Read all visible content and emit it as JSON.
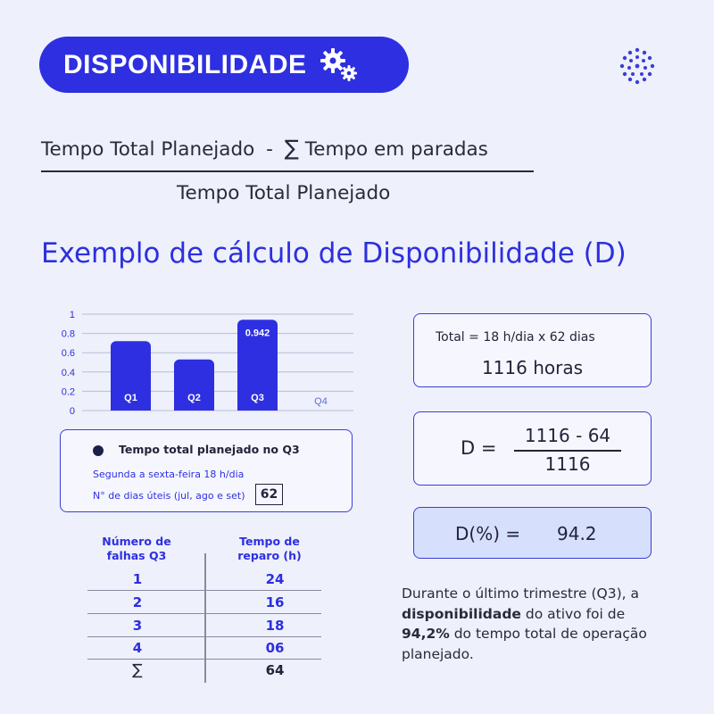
{
  "header": {
    "title": "DISPONIBILIDADE",
    "icon": "gears-icon"
  },
  "brand": {
    "accent": "#2d2fe0",
    "logo_icon": "dot-circle-logo"
  },
  "formula": {
    "numerator_left": "Tempo Total Planejado",
    "minus": "-",
    "sum_symbol": "∑",
    "numerator_right": "Tempo em paradas",
    "denominator": "Tempo Total Planejado"
  },
  "section_title": "Exemplo de cálculo de Disponibilidade (D)",
  "chart_data": {
    "type": "bar",
    "categories": [
      "Q1",
      "Q2",
      "Q3",
      "Q4"
    ],
    "values": [
      0.72,
      0.53,
      0.942,
      null
    ],
    "data_labels": [
      "",
      "",
      "0.942",
      ""
    ],
    "ylim": [
      0,
      1
    ],
    "yticks": [
      "0",
      "0.2",
      "0.4",
      "0.6",
      "0.8",
      "1"
    ],
    "grid": true,
    "bar_color": "#2d2fe0"
  },
  "info_box": {
    "heading": "Tempo total planejado no Q3",
    "line1": "Segunda a sexta-feira  18 h/dia",
    "line2": "N° de dias úteis (jul, ago e set)",
    "days": "62"
  },
  "table": {
    "col1_header_l1": "Número de",
    "col1_header_l2": "falhas Q3",
    "col2_header_l1": "Tempo de",
    "col2_header_l2": "reparo (h)",
    "rows": [
      {
        "n": "1",
        "t": "24"
      },
      {
        "n": "2",
        "t": "16"
      },
      {
        "n": "3",
        "t": "18"
      },
      {
        "n": "4",
        "t": "06"
      }
    ],
    "sum_symbol": "∑",
    "sum_value": "64"
  },
  "total_box": {
    "line1": "Total =   18 h/dia x 62 dias",
    "line2": "1116 horas"
  },
  "d_box": {
    "label": "D  =",
    "numerator": "1116 - 64",
    "denominator": "1116"
  },
  "dpct_box": {
    "label": "D(%)  =",
    "value": "94.2"
  },
  "conclusion": {
    "p1": "Durante o último trimestre (Q3), a ",
    "bold1": "disponibilidade",
    "p2": " do ativo foi de ",
    "bold2": "94,2%",
    "p3": " do tempo total de operação planejado."
  }
}
